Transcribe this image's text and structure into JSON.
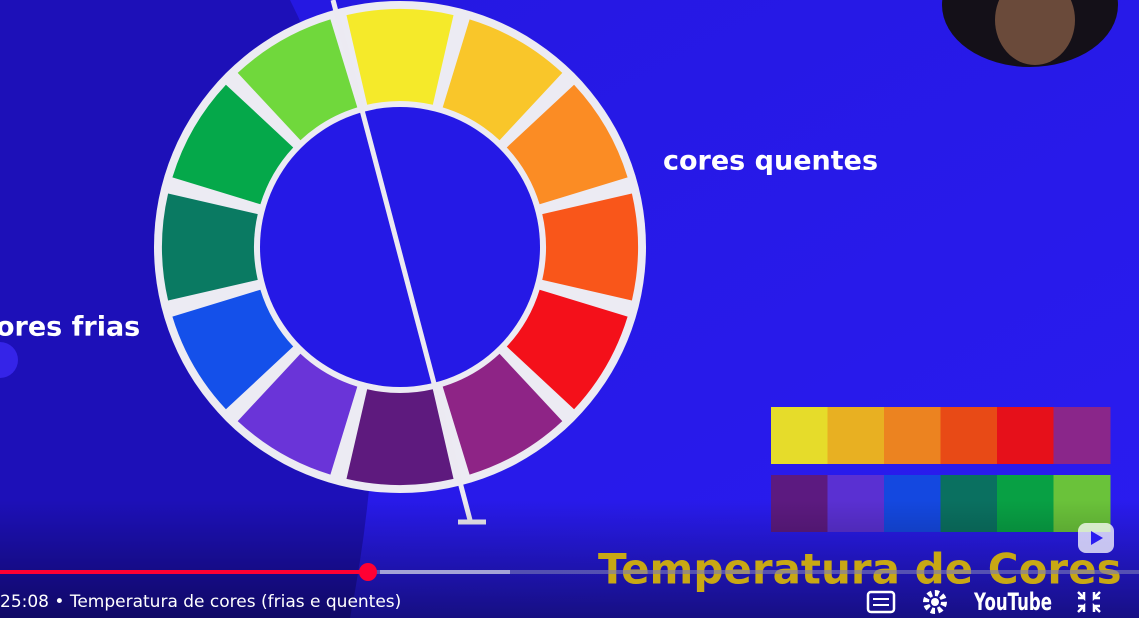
{
  "video": {
    "warm_label": "cores quentes",
    "cold_label": "ores frias",
    "overlay_title": "Temperatura de Cores",
    "player": {
      "time": "25:08",
      "separator": "•",
      "chapter": "Temperatura de cores (frias e quentes)",
      "logo": "YouTube"
    }
  }
}
